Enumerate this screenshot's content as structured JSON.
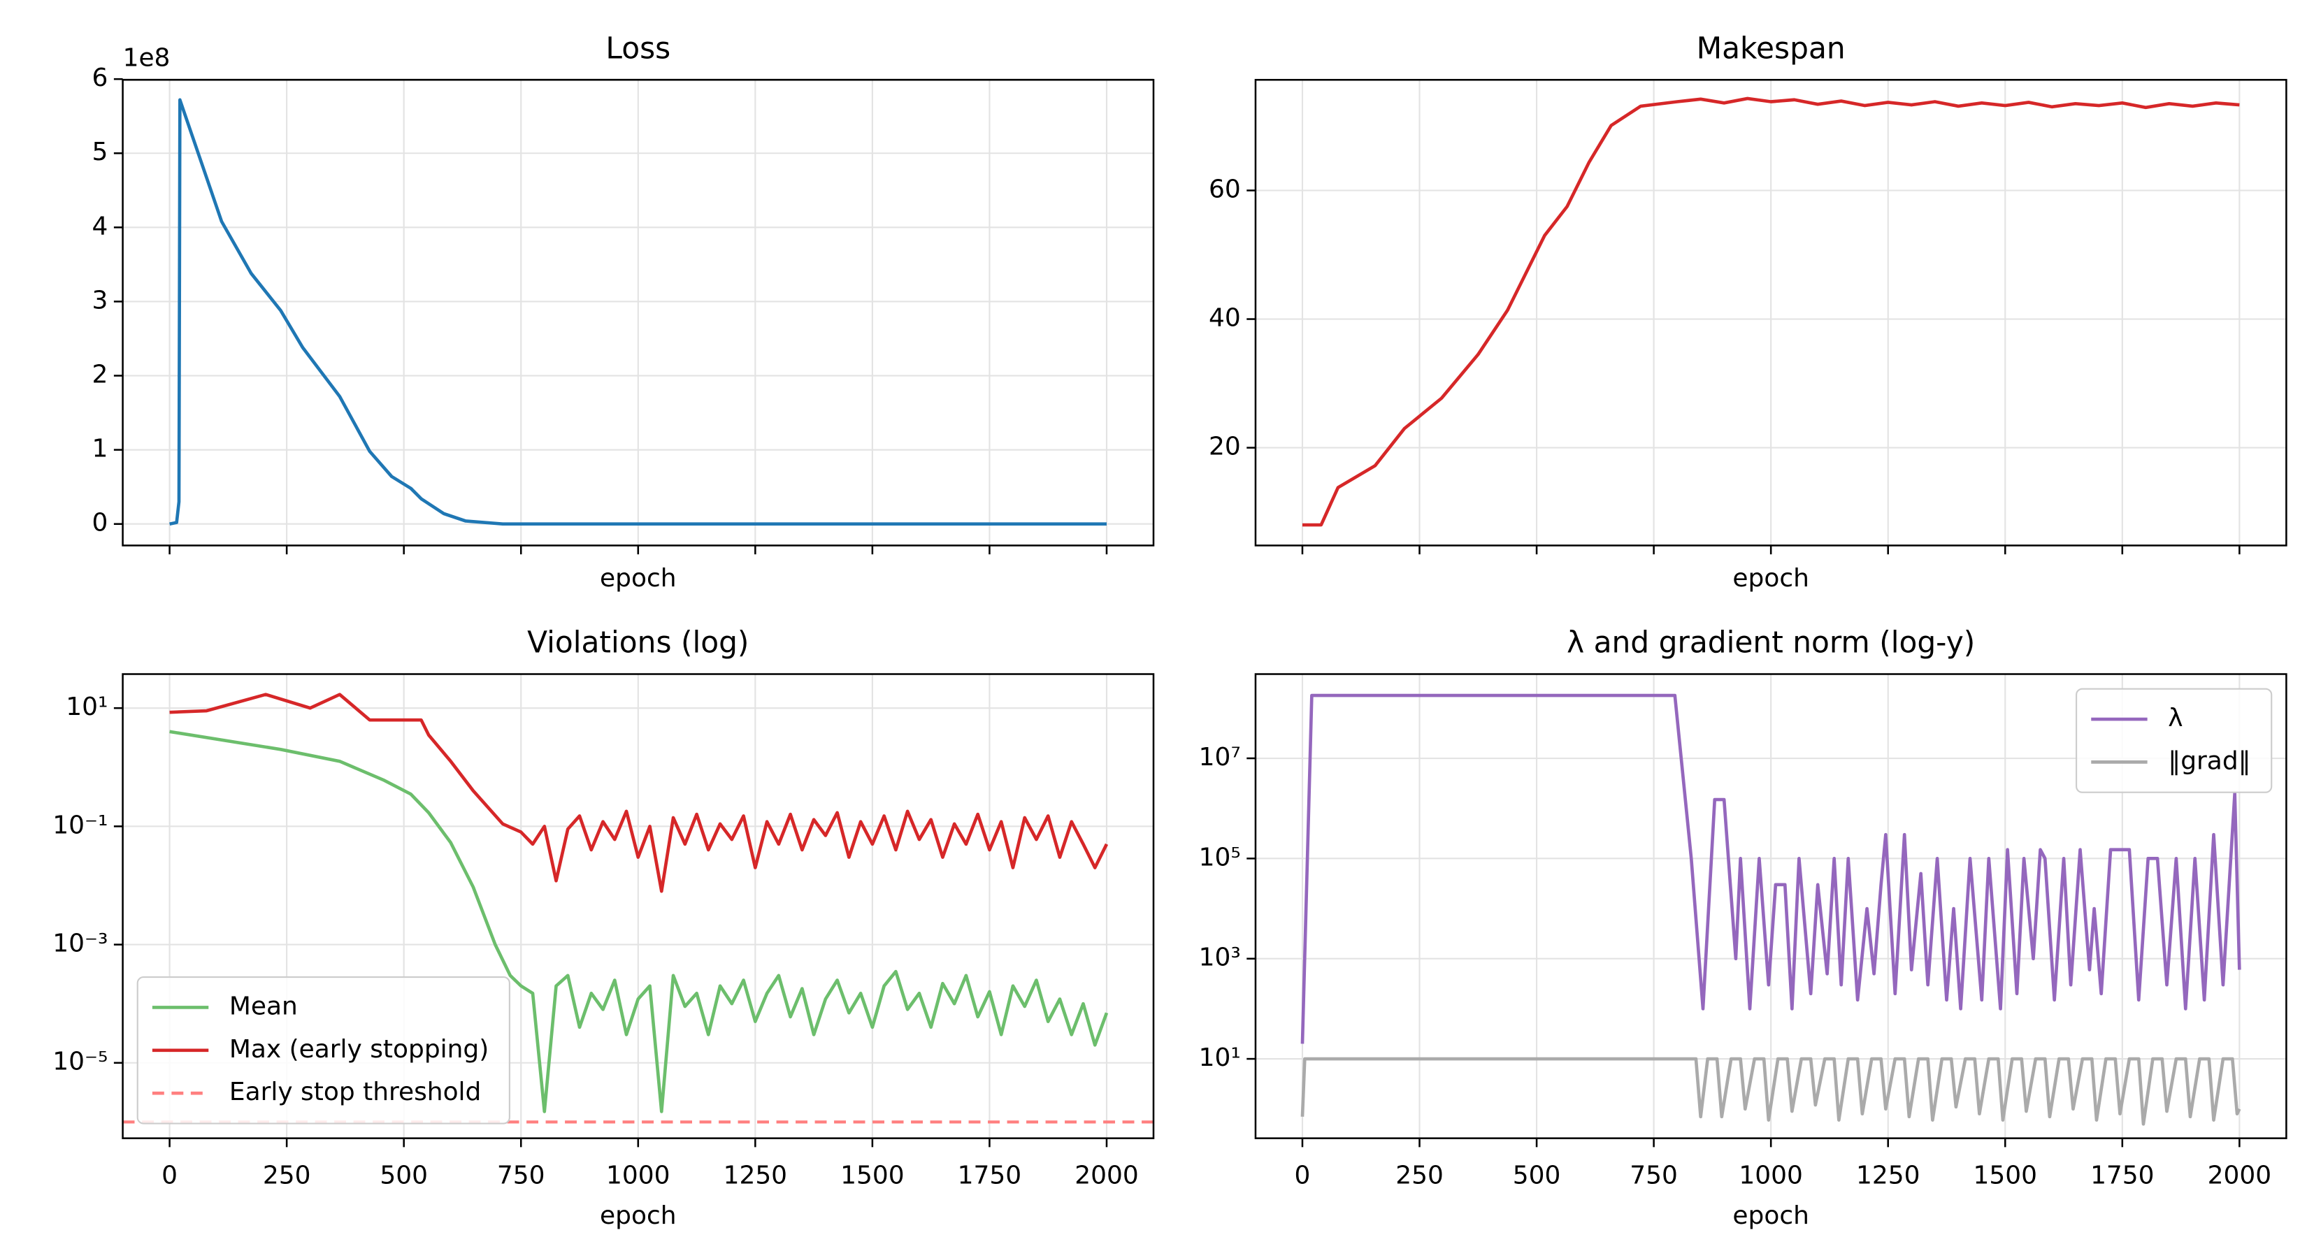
{
  "chart_data": [
    {
      "type": "line",
      "title": "Loss",
      "xlabel": "epoch",
      "offset_text": "1e8",
      "yscale": "linear",
      "grid": true,
      "xtick_labels": false,
      "xlim": [
        -100,
        2100
      ],
      "xticks": [
        0,
        250,
        500,
        750,
        1000,
        1250,
        1500,
        1750,
        2000
      ],
      "ylim": [
        -0.29,
        5.99
      ],
      "yticks": [
        0,
        1,
        2,
        3,
        4,
        5,
        6
      ],
      "series": [
        {
          "name": "Loss",
          "color": "#1f77b4",
          "x": [
            0,
            15,
            20,
            22,
            111,
            174,
            237,
            284,
            363,
            427,
            474,
            515,
            537,
            585,
            632,
            711,
            2000
          ],
          "values": [
            0,
            0.02,
            0.3,
            5.72,
            4.08,
            3.38,
            2.88,
            2.38,
            1.72,
            0.98,
            0.64,
            0.48,
            0.34,
            0.14,
            0.04,
            0,
            0
          ]
        }
      ]
    },
    {
      "type": "line",
      "title": "Makespan",
      "xlabel": "epoch",
      "yscale": "linear",
      "grid": true,
      "xtick_labels": false,
      "xlim": [
        -100,
        2100
      ],
      "xticks": [
        0,
        250,
        500,
        750,
        1000,
        1250,
        1500,
        1750,
        2000
      ],
      "ylim": [
        4.8,
        77.2
      ],
      "yticks": [
        20,
        40,
        60
      ],
      "series": [
        {
          "name": "Makespan",
          "color": "#d62728",
          "x": [
            0,
            40,
            76,
            155,
            218,
            297,
            375,
            438,
            517,
            565,
            612,
            659,
            722,
            800,
            850,
            900,
            950,
            1000,
            1050,
            1100,
            1150,
            1200,
            1250,
            1300,
            1350,
            1400,
            1450,
            1500,
            1550,
            1600,
            1650,
            1700,
            1750,
            1800,
            1850,
            1900,
            1950,
            2000
          ],
          "values": [
            8,
            8,
            13.8,
            17.2,
            23,
            27.7,
            34.5,
            41.4,
            53,
            57.5,
            64.4,
            70.1,
            73.1,
            73.8,
            74.2,
            73.6,
            74.3,
            73.8,
            74.1,
            73.4,
            73.9,
            73.2,
            73.7,
            73.3,
            73.8,
            73.1,
            73.6,
            73.2,
            73.7,
            73.0,
            73.5,
            73.2,
            73.6,
            72.9,
            73.5,
            73.1,
            73.6,
            73.3
          ]
        }
      ]
    },
    {
      "type": "line",
      "title": "Violations (log)",
      "xlabel": "epoch",
      "yscale": "log",
      "grid": true,
      "xtick_labels": true,
      "legend": "lower left",
      "xlim": [
        -100,
        2100
      ],
      "xticks": [
        0,
        250,
        500,
        750,
        1000,
        1250,
        1500,
        1750,
        2000
      ],
      "ylim": [
        5.3e-07,
        37.6
      ],
      "yticks": [
        {
          "value": 10,
          "label": "10¹"
        },
        {
          "value": 0.1,
          "label": "10⁻¹"
        },
        {
          "value": 0.001,
          "label": "10⁻³"
        },
        {
          "value": 1e-05,
          "label": "10⁻⁵"
        }
      ],
      "series": [
        {
          "name": "Mean",
          "color": "#6cbe6c",
          "x": [
            0,
            237,
            363,
            458,
            515,
            553,
            600,
            648,
            695,
            727,
            750,
            775,
            800,
            825,
            850,
            875,
            900,
            925,
            950,
            975,
            1000,
            1025,
            1050,
            1075,
            1100,
            1125,
            1150,
            1175,
            1200,
            1225,
            1250,
            1275,
            1300,
            1325,
            1350,
            1375,
            1400,
            1425,
            1450,
            1475,
            1500,
            1525,
            1550,
            1575,
            1600,
            1625,
            1650,
            1675,
            1700,
            1725,
            1750,
            1775,
            1800,
            1825,
            1850,
            1875,
            1900,
            1925,
            1950,
            1975,
            2000
          ],
          "values": [
            4.0,
            2.0,
            1.26,
            0.6,
            0.35,
            0.17,
            0.053,
            0.0094,
            0.001,
            0.0003,
            0.0002,
            0.00015,
            1.5e-06,
            0.0002,
            0.0003,
            4e-05,
            0.00015,
            8e-05,
            0.00025,
            3e-05,
            0.00012,
            0.0002,
            1.5e-06,
            0.0003,
            9e-05,
            0.00015,
            3e-05,
            0.0002,
            0.0001,
            0.00025,
            5e-05,
            0.00015,
            0.0003,
            6e-05,
            0.00018,
            3e-05,
            0.00012,
            0.00025,
            7e-05,
            0.00015,
            4e-05,
            0.0002,
            0.00035,
            8e-05,
            0.00015,
            4e-05,
            0.00022,
            0.0001,
            0.0003,
            6e-05,
            0.00016,
            3e-05,
            0.0002,
            9e-05,
            0.00025,
            5e-05,
            0.00012,
            3e-05,
            0.0001,
            2e-05,
            7e-05
          ]
        },
        {
          "name": "Max (early stopping)",
          "color": "#d62728",
          "x": [
            0,
            79,
            205,
            300,
            363,
            427,
            490,
            537,
            553,
            600,
            648,
            711,
            750,
            775,
            800,
            825,
            850,
            875,
            900,
            925,
            950,
            975,
            1000,
            1025,
            1050,
            1075,
            1100,
            1125,
            1150,
            1175,
            1200,
            1225,
            1250,
            1275,
            1300,
            1325,
            1350,
            1375,
            1400,
            1425,
            1450,
            1475,
            1500,
            1525,
            1550,
            1575,
            1600,
            1625,
            1650,
            1675,
            1700,
            1725,
            1750,
            1775,
            1800,
            1825,
            1850,
            1875,
            1900,
            1925,
            1950,
            1975,
            2000
          ],
          "values": [
            8.5,
            9,
            17,
            10,
            17,
            6.3,
            6.3,
            6.3,
            3.5,
            1.26,
            0.4,
            0.11,
            0.08,
            0.05,
            0.1,
            0.012,
            0.09,
            0.15,
            0.04,
            0.12,
            0.06,
            0.18,
            0.03,
            0.1,
            0.008,
            0.14,
            0.05,
            0.16,
            0.04,
            0.11,
            0.06,
            0.15,
            0.02,
            0.12,
            0.05,
            0.16,
            0.04,
            0.13,
            0.07,
            0.17,
            0.03,
            0.12,
            0.05,
            0.15,
            0.04,
            0.18,
            0.06,
            0.13,
            0.03,
            0.11,
            0.05,
            0.16,
            0.04,
            0.12,
            0.02,
            0.14,
            0.06,
            0.15,
            0.03,
            0.12,
            0.05,
            0.02,
            0.05
          ]
        }
      ],
      "hlines": [
        {
          "name": "Early stop threshold",
          "value": 1e-06,
          "color": "#ff7f7f",
          "style": "dashed"
        }
      ]
    },
    {
      "type": "line",
      "title": "λ and gradient norm (log-y)",
      "xlabel": "epoch",
      "yscale": "log",
      "grid": true,
      "xtick_labels": true,
      "legend": "upper right",
      "xlim": [
        -100,
        2100
      ],
      "xticks": [
        0,
        250,
        500,
        750,
        1000,
        1250,
        1500,
        1750,
        2000
      ],
      "ylim": [
        0.26,
        480000000
      ],
      "yticks": [
        {
          "value": 10,
          "label": "10¹"
        },
        {
          "value": 1000,
          "label": "10³"
        },
        {
          "value": 100000,
          "label": "10⁵"
        },
        {
          "value": 10000000,
          "label": "10⁷"
        }
      ],
      "series": [
        {
          "name": "λ",
          "color": "#9467bd",
          "x": [
            0,
            20,
            795,
            830,
            855,
            880,
            900,
            925,
            935,
            955,
            975,
            995,
            1010,
            1030,
            1045,
            1060,
            1085,
            1100,
            1120,
            1135,
            1150,
            1165,
            1185,
            1205,
            1220,
            1235,
            1245,
            1265,
            1285,
            1300,
            1320,
            1335,
            1355,
            1375,
            1390,
            1405,
            1425,
            1450,
            1465,
            1490,
            1505,
            1525,
            1540,
            1560,
            1575,
            1585,
            1605,
            1625,
            1640,
            1660,
            1680,
            1690,
            1705,
            1725,
            1765,
            1785,
            1805,
            1825,
            1845,
            1865,
            1885,
            1905,
            1925,
            1945,
            1965,
            1990,
            2000
          ],
          "values": [
            20,
            180000000,
            180000000,
            100000,
            100,
            1500000,
            1500000,
            1000,
            100000,
            100,
            100000,
            300,
            30000,
            30000,
            100,
            100000,
            200,
            30000,
            500,
            100000,
            300,
            100000,
            150,
            10000,
            500,
            30000,
            300000,
            200,
            300000,
            600,
            50000,
            300,
            100000,
            150,
            10000,
            100,
            100000,
            150,
            100000,
            100,
            150000,
            200,
            100000,
            1000,
            150000,
            100000,
            150,
            100000,
            300,
            150000,
            600,
            10000,
            200,
            150000,
            150000,
            150,
            100000,
            100000,
            300,
            100000,
            100,
            100000,
            150,
            300000,
            300,
            2000000,
            600
          ]
        },
        {
          "name": "‖grad‖",
          "color": "#aaaaaa",
          "x": [
            0,
            5,
            840,
            850,
            865,
            885,
            895,
            915,
            935,
            945,
            965,
            985,
            995,
            1015,
            1035,
            1045,
            1065,
            1085,
            1095,
            1115,
            1135,
            1145,
            1165,
            1185,
            1195,
            1215,
            1235,
            1245,
            1265,
            1285,
            1295,
            1315,
            1335,
            1345,
            1365,
            1385,
            1395,
            1415,
            1435,
            1445,
            1465,
            1485,
            1495,
            1515,
            1535,
            1545,
            1565,
            1585,
            1595,
            1615,
            1635,
            1645,
            1665,
            1685,
            1695,
            1715,
            1735,
            1745,
            1765,
            1785,
            1795,
            1815,
            1835,
            1845,
            1865,
            1885,
            1895,
            1915,
            1935,
            1945,
            1965,
            1985,
            1995,
            2000
          ],
          "values": [
            0.7,
            10,
            10,
            0.7,
            10,
            10,
            0.7,
            10,
            10,
            1,
            10,
            10,
            0.6,
            10,
            10,
            0.9,
            10,
            10,
            1.2,
            10,
            10,
            0.6,
            10,
            10,
            0.8,
            10,
            10,
            1,
            10,
            10,
            0.7,
            10,
            10,
            0.6,
            10,
            10,
            1.1,
            10,
            10,
            0.8,
            10,
            10,
            0.6,
            10,
            10,
            0.9,
            10,
            10,
            0.7,
            10,
            10,
            1,
            10,
            10,
            0.6,
            10,
            10,
            0.8,
            10,
            10,
            0.5,
            10,
            10,
            0.9,
            10,
            10,
            0.7,
            10,
            10,
            0.6,
            10,
            10,
            0.8,
            1
          ]
        }
      ]
    }
  ]
}
